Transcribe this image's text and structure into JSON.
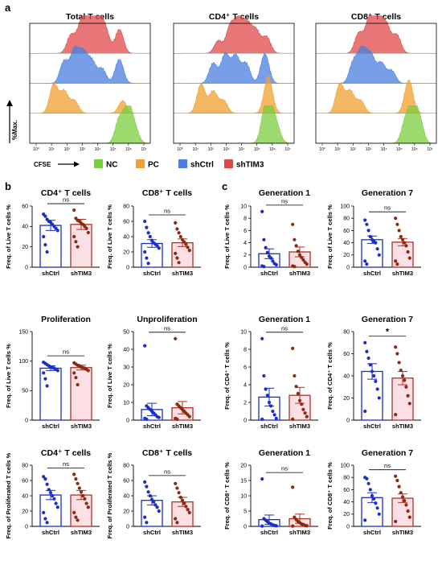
{
  "panel_labels": [
    "a",
    "b",
    "c"
  ],
  "colors": {
    "NC": "#7ccd3c",
    "PC": "#f0a030",
    "shCtrl": "#4a7fe0",
    "shTIM3": "#e04848",
    "shCtrl_bar": "#1a2ec8",
    "shTIM3_bar": "#b03020",
    "shTIM3_dots": "#8a2a10",
    "shTIM3_fill": "#fde0e6"
  },
  "flow": {
    "y_label": "%Max.",
    "x_label": "CFSE",
    "panels": [
      "Total T cells",
      "CD4⁺ T cells",
      "CD8⁺ T cells"
    ],
    "x_ticks": [
      "10⁰",
      "10¹",
      "10²",
      "10³",
      "10⁴",
      "10⁵",
      "10⁶",
      "10⁷"
    ],
    "legend": [
      "NC",
      "PC",
      "shCtrl",
      "shTIM3"
    ]
  },
  "chart_data": [
    {
      "type": "bar",
      "panel": "b",
      "title": "CD4⁺ T cells",
      "ylabel": "Freq. of Live T cells %",
      "ylim": [
        0,
        60
      ],
      "yticks": [
        0,
        20,
        40,
        60
      ],
      "categories": [
        "shCtrl",
        "shTIM3"
      ],
      "values": [
        41,
        42
      ],
      "errors": [
        5,
        5
      ],
      "significance": "ns",
      "points": [
        [
          52,
          50,
          47,
          45,
          44,
          42,
          40,
          38,
          36,
          30,
          22,
          15
        ],
        [
          56,
          48,
          46,
          45,
          43,
          42,
          40,
          38,
          34,
          30,
          25,
          20
        ]
      ]
    },
    {
      "type": "bar",
      "panel": "b",
      "title": "CD8⁺ T cells",
      "ylabel": "Freq. of Live T cells %",
      "ylim": [
        0,
        80
      ],
      "yticks": [
        0,
        20,
        40,
        60,
        80
      ],
      "categories": [
        "shCtrl",
        "shTIM3"
      ],
      "values": [
        31,
        32
      ],
      "errors": [
        5,
        5
      ],
      "significance": "ns",
      "points": [
        [
          60,
          52,
          45,
          40,
          35,
          32,
          30,
          28,
          25,
          20,
          12,
          5
        ],
        [
          58,
          50,
          45,
          40,
          36,
          33,
          30,
          26,
          22,
          18,
          12,
          6
        ]
      ]
    },
    {
      "type": "bar",
      "panel": "c",
      "title": "Generation 1",
      "ylabel": "Freq. of Live T cells %",
      "ylim": [
        0,
        10
      ],
      "yticks": [
        0,
        2,
        4,
        6,
        8,
        10
      ],
      "categories": [
        "shCtrl",
        "shTIM3"
      ],
      "values": [
        2.2,
        2.5
      ],
      "errors": [
        0.8,
        0.8
      ],
      "significance": "ns",
      "points": [
        [
          9.1,
          4.5,
          3.2,
          2.4,
          1.8,
          1.5,
          1.0,
          0.6,
          0.4,
          0.2,
          0.1
        ],
        [
          7.0,
          4.5,
          3.5,
          2.6,
          2.0,
          1.6,
          1.2,
          0.8,
          0.5,
          0.2,
          0.1
        ]
      ]
    },
    {
      "type": "bar",
      "panel": "c",
      "title": "Generation 7",
      "ylabel": "Freq. of Live T cells %",
      "ylim": [
        0,
        100
      ],
      "yticks": [
        0,
        20,
        40,
        60,
        80,
        100
      ],
      "categories": [
        "shCtrl",
        "shTIM3"
      ],
      "values": [
        45,
        41
      ],
      "errors": [
        6,
        6
      ],
      "significance": "ns",
      "points": [
        [
          77,
          70,
          60,
          50,
          45,
          42,
          40,
          30,
          20,
          10,
          5
        ],
        [
          80,
          70,
          60,
          50,
          45,
          40,
          35,
          25,
          15,
          10,
          5
        ]
      ]
    },
    {
      "type": "bar",
      "panel": "b",
      "title": "Proliferation",
      "ylabel": "Freq. of Live T cells %",
      "ylim": [
        0,
        150
      ],
      "yticks": [
        0,
        50,
        100,
        150
      ],
      "categories": [
        "shCtrl",
        "shTIM3"
      ],
      "values": [
        88,
        89
      ],
      "errors": [
        4,
        4
      ],
      "significance": "ns",
      "points": [
        [
          98,
          96,
          94,
          92,
          90,
          89,
          88,
          86,
          84,
          80,
          70,
          58
        ],
        [
          97,
          95,
          93,
          92,
          90,
          89,
          88,
          86,
          84,
          80,
          72,
          60
        ]
      ]
    },
    {
      "type": "bar",
      "panel": "b",
      "title": "Unproliferation",
      "ylabel": "Freq. of Live T cells %",
      "ylim": [
        0,
        50
      ],
      "yticks": [
        0,
        10,
        20,
        30,
        40,
        50
      ],
      "categories": [
        "shCtrl",
        "shTIM3"
      ],
      "values": [
        6,
        7
      ],
      "errors": [
        3.5,
        3.5
      ],
      "significance": "ns",
      "points": [
        [
          42,
          8,
          7,
          6,
          5,
          4,
          3,
          2,
          1.5,
          1,
          0.5
        ],
        [
          46,
          9,
          8,
          7,
          6,
          5,
          4,
          3,
          2,
          1,
          0.5
        ]
      ]
    },
    {
      "type": "bar",
      "panel": "c",
      "title": "Generation 1",
      "ylabel": "Freq. of CD4⁺ T cells %",
      "ylim": [
        0,
        10
      ],
      "yticks": [
        0,
        2,
        4,
        6,
        8,
        10
      ],
      "categories": [
        "shCtrl",
        "shTIM3"
      ],
      "values": [
        2.6,
        2.8
      ],
      "errors": [
        1.0,
        0.9
      ],
      "significance": "ns",
      "points": [
        [
          9.2,
          5.0,
          3.5,
          2.8,
          2.0,
          1.6,
          1.0,
          0.6,
          0.2,
          0.1
        ],
        [
          8.1,
          5.0,
          3.8,
          3.0,
          2.2,
          1.8,
          1.2,
          0.8,
          0.4,
          0.1
        ]
      ]
    },
    {
      "type": "bar",
      "panel": "c",
      "title": "Generation 7",
      "ylabel": "Freq. of CD4⁺ T cells %",
      "ylim": [
        0,
        80
      ],
      "yticks": [
        0,
        20,
        40,
        60,
        80
      ],
      "categories": [
        "shCtrl",
        "shTIM3"
      ],
      "values": [
        44,
        38
      ],
      "errors": [
        7,
        6
      ],
      "significance": "*",
      "points": [
        [
          70,
          62,
          56,
          50,
          44,
          40,
          35,
          28,
          20,
          8
        ],
        [
          66,
          60,
          52,
          45,
          40,
          36,
          30,
          22,
          15,
          5
        ]
      ]
    },
    {
      "type": "bar",
      "panel": "b",
      "title": "CD4⁺ T cells",
      "ylabel": "Freq. of Proliferated T cells %",
      "ylim": [
        0,
        80
      ],
      "yticks": [
        0,
        20,
        40,
        60,
        80
      ],
      "categories": [
        "shCtrl",
        "shTIM3"
      ],
      "values": [
        41,
        41
      ],
      "errors": [
        6,
        6
      ],
      "significance": "ns",
      "points": [
        [
          65,
          62,
          55,
          48,
          44,
          40,
          36,
          30,
          25,
          18,
          10,
          5
        ],
        [
          68,
          62,
          56,
          50,
          45,
          40,
          36,
          30,
          25,
          18,
          12,
          8
        ]
      ]
    },
    {
      "type": "bar",
      "panel": "b",
      "title": "CD8⁺ T cells",
      "ylabel": "Freq. of Proliferated T cells %",
      "ylim": [
        0,
        80
      ],
      "yticks": [
        0,
        20,
        40,
        60,
        80
      ],
      "categories": [
        "shCtrl",
        "shTIM3"
      ],
      "values": [
        34,
        32
      ],
      "errors": [
        6,
        6
      ],
      "significance": "ns",
      "points": [
        [
          58,
          52,
          45,
          40,
          35,
          32,
          28,
          25,
          20,
          12,
          5
        ],
        [
          56,
          50,
          44,
          38,
          34,
          30,
          26,
          22,
          18,
          10,
          5
        ]
      ]
    },
    {
      "type": "bar",
      "panel": "c",
      "title": "Generation 1",
      "ylabel": "Freq. of CD8⁺ T cells %",
      "ylim": [
        0,
        20
      ],
      "yticks": [
        0,
        5,
        10,
        15,
        20
      ],
      "categories": [
        "shCtrl",
        "shTIM3"
      ],
      "values": [
        2.2,
        2.5
      ],
      "errors": [
        1.5,
        1.5
      ],
      "significance": "ns",
      "points": [
        [
          15.5,
          2.5,
          2.0,
          1.5,
          1.0,
          0.8,
          0.5,
          0.3,
          0.2,
          0.1
        ],
        [
          12.8,
          3.0,
          2.2,
          1.6,
          1.2,
          0.8,
          0.5,
          0.3,
          0.2,
          0.1
        ]
      ]
    },
    {
      "type": "bar",
      "panel": "c",
      "title": "Generation 7",
      "ylabel": "Freq. of CD8⁺ T cells %",
      "ylim": [
        0,
        100
      ],
      "yticks": [
        0,
        20,
        40,
        60,
        80,
        100
      ],
      "categories": [
        "shCtrl",
        "shTIM3"
      ],
      "values": [
        47,
        46
      ],
      "errors": [
        8,
        7
      ],
      "significance": "ns",
      "points": [
        [
          80,
          78,
          70,
          60,
          50,
          45,
          38,
          30,
          20,
          10
        ],
        [
          82,
          75,
          65,
          55,
          48,
          42,
          35,
          25,
          15,
          8
        ]
      ]
    }
  ]
}
